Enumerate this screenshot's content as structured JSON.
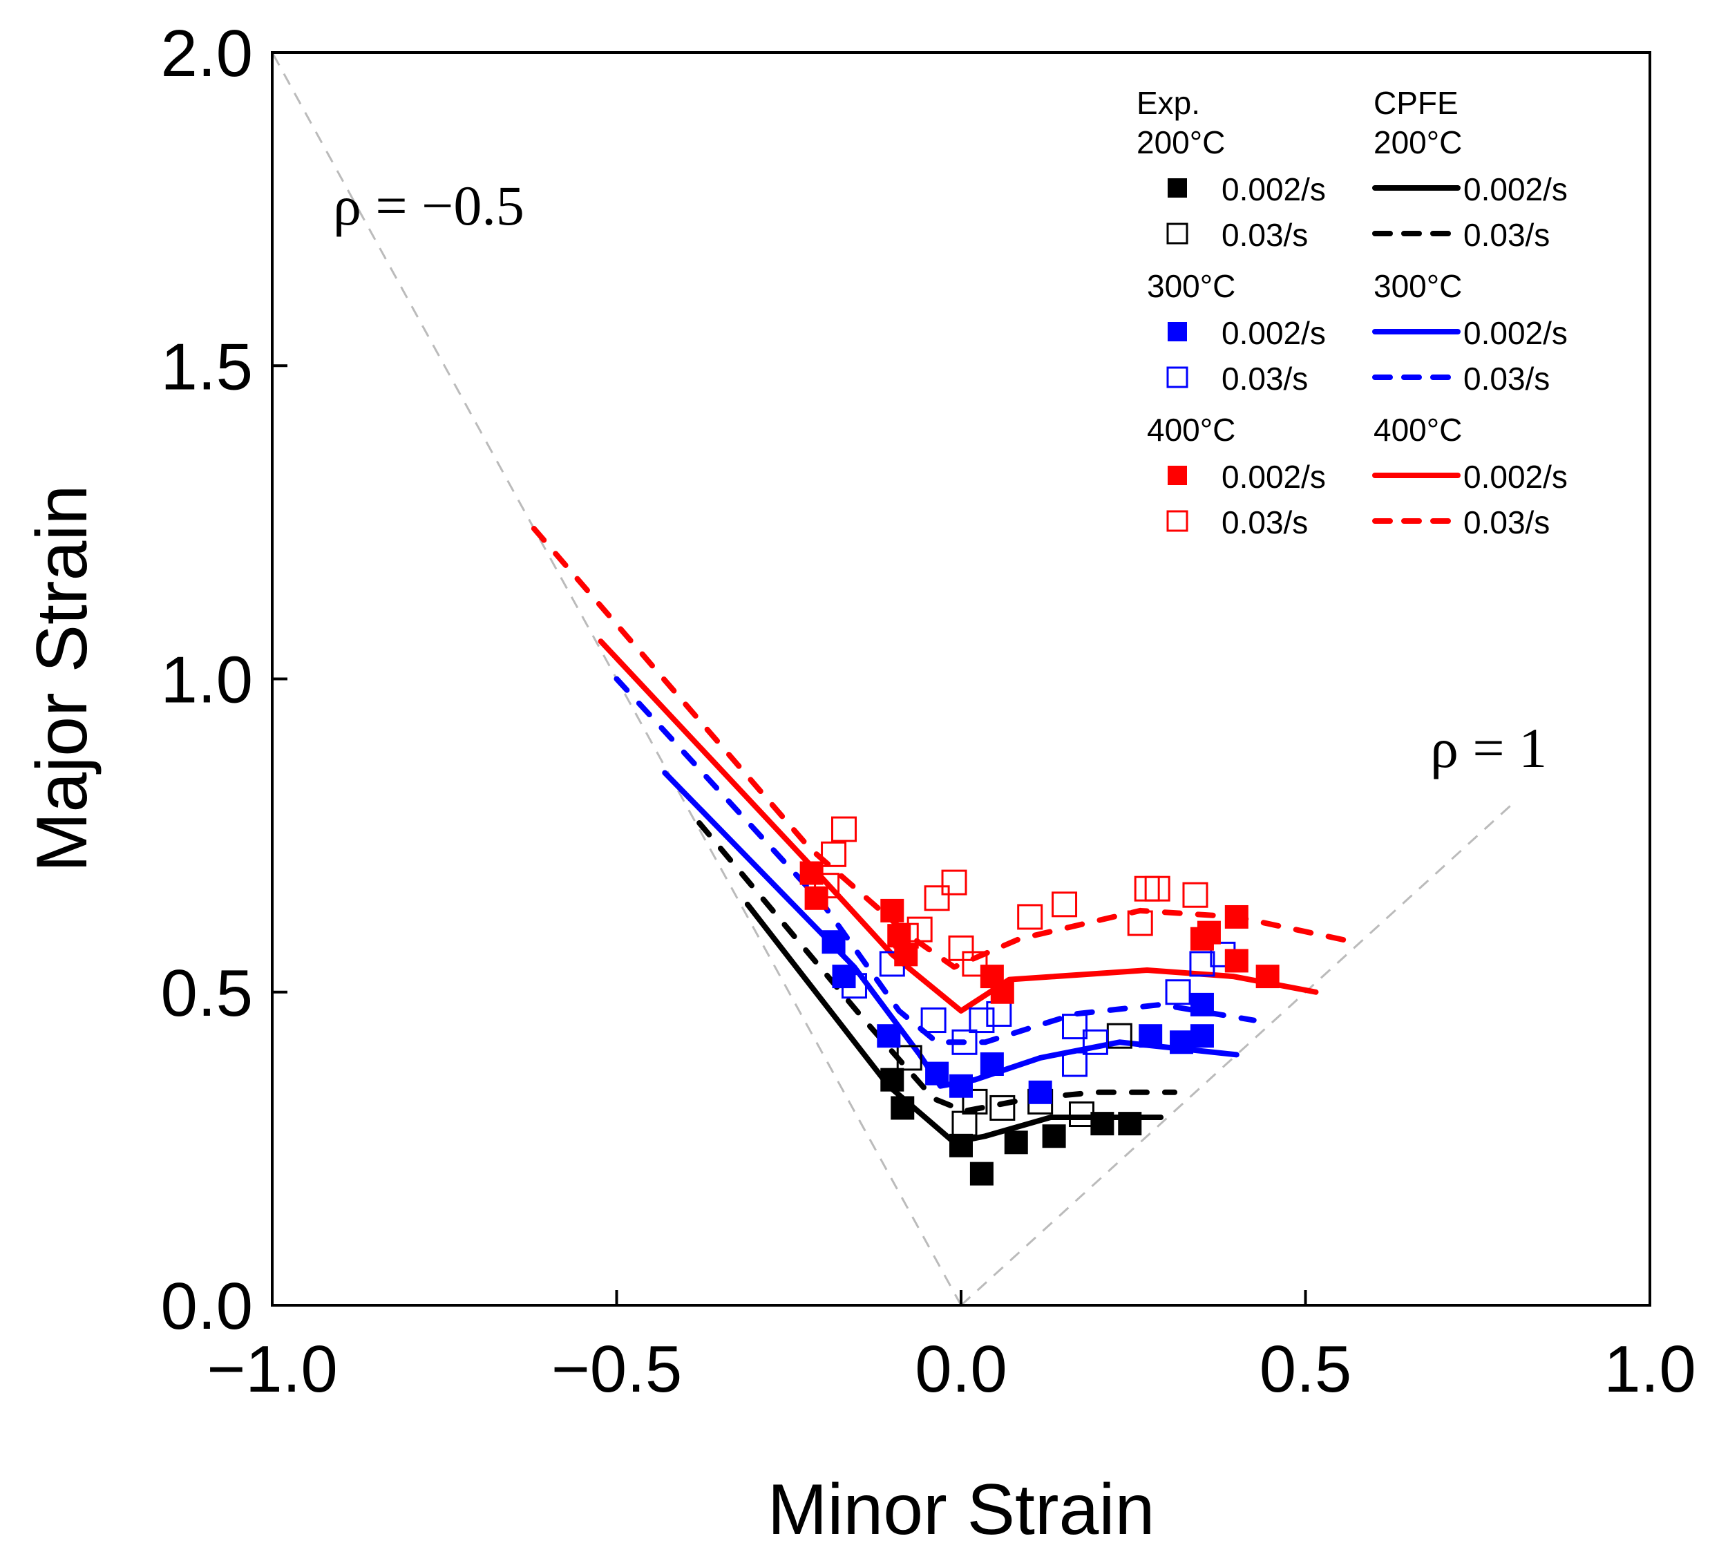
{
  "chart_data": {
    "type": "scatter",
    "xlabel": "Minor Strain",
    "ylabel": "Major Strain",
    "xlim": [
      -1.0,
      1.0
    ],
    "ylim": [
      0.0,
      2.0
    ],
    "xticks": [
      "−1.0",
      "−0.5",
      "0.0",
      "0.5",
      "1.0"
    ],
    "xtick_values": [
      -1.0,
      -0.5,
      0.0,
      0.5,
      1.0
    ],
    "yticks": [
      "0.0",
      "0.5",
      "1.0",
      "1.5",
      "2.0"
    ],
    "ytick_values": [
      0.0,
      0.5,
      1.0,
      1.5,
      2.0
    ],
    "grid": false,
    "legend_placement": "top-right",
    "annotations": [
      {
        "text": "ρ = −0.5",
        "x": -0.82,
        "y": 1.74
      },
      {
        "text": "ρ = 1",
        "x": 0.68,
        "y": 0.88
      }
    ],
    "reference_lines": [
      {
        "label": "ρ = −0.5",
        "points": [
          [
            0,
            0
          ],
          [
            -1.0,
            2.0
          ]
        ],
        "color": "#bbbbbb"
      },
      {
        "label": "ρ = 1",
        "points": [
          [
            0,
            0
          ],
          [
            0.8,
            0.8
          ]
        ],
        "color": "#bbbbbb"
      }
    ],
    "legend": {
      "exp_header": "Exp.",
      "cpfe_header": "CPFE",
      "groups": [
        {
          "temp": "200°C",
          "color": "#000000"
        },
        {
          "temp": "300°C",
          "color": "#0000ff"
        },
        {
          "temp": "400°C",
          "color": "#ff0000"
        }
      ],
      "rates": [
        "0.002/s",
        "0.03/s"
      ]
    },
    "experimental": [
      {
        "temp": "200°C",
        "rate": "0.002/s",
        "color": "#000000",
        "filled": true,
        "points": [
          [
            -0.1,
            0.36
          ],
          [
            -0.085,
            0.315
          ],
          [
            0.0,
            0.255
          ],
          [
            0.03,
            0.21
          ],
          [
            0.08,
            0.26
          ],
          [
            0.135,
            0.27
          ],
          [
            0.205,
            0.29
          ],
          [
            0.245,
            0.29
          ]
        ]
      },
      {
        "temp": "200°C",
        "rate": "0.03/s",
        "color": "#000000",
        "filled": false,
        "points": [
          [
            -0.075,
            0.395
          ],
          [
            0.005,
            0.29
          ],
          [
            0.02,
            0.325
          ],
          [
            0.06,
            0.315
          ],
          [
            0.115,
            0.325
          ],
          [
            0.175,
            0.305
          ],
          [
            0.23,
            0.43
          ]
        ]
      },
      {
        "temp": "300°C",
        "rate": "0.002/s",
        "color": "#0000ff",
        "filled": true,
        "points": [
          [
            -0.185,
            0.58
          ],
          [
            -0.17,
            0.525
          ],
          [
            -0.105,
            0.43
          ],
          [
            -0.035,
            0.37
          ],
          [
            0.0,
            0.35
          ],
          [
            0.045,
            0.385
          ],
          [
            0.115,
            0.34
          ],
          [
            0.275,
            0.43
          ],
          [
            0.32,
            0.42
          ],
          [
            0.35,
            0.43
          ],
          [
            0.35,
            0.48
          ]
        ]
      },
      {
        "temp": "300°C",
        "rate": "0.03/s",
        "color": "#0000ff",
        "filled": false,
        "points": [
          [
            -0.155,
            0.51
          ],
          [
            -0.1,
            0.545
          ],
          [
            -0.04,
            0.455
          ],
          [
            0.005,
            0.42
          ],
          [
            0.03,
            0.455
          ],
          [
            0.055,
            0.465
          ],
          [
            0.165,
            0.445
          ],
          [
            0.195,
            0.42
          ],
          [
            0.165,
            0.385
          ],
          [
            0.315,
            0.5
          ],
          [
            0.35,
            0.545
          ],
          [
            0.38,
            0.56
          ]
        ]
      },
      {
        "temp": "400°C",
        "rate": "0.002/s",
        "color": "#ff0000",
        "filled": true,
        "points": [
          [
            -0.217,
            0.69
          ],
          [
            -0.21,
            0.65
          ],
          [
            -0.1,
            0.63
          ],
          [
            -0.09,
            0.59
          ],
          [
            -0.08,
            0.56
          ],
          [
            0.045,
            0.525
          ],
          [
            0.06,
            0.5
          ],
          [
            0.35,
            0.585
          ],
          [
            0.36,
            0.595
          ],
          [
            0.4,
            0.62
          ],
          [
            0.4,
            0.55
          ],
          [
            0.445,
            0.525
          ]
        ]
      },
      {
        "temp": "400°C",
        "rate": "0.03/s",
        "color": "#ff0000",
        "filled": false,
        "points": [
          [
            -0.17,
            0.76
          ],
          [
            -0.185,
            0.72
          ],
          [
            -0.195,
            0.67
          ],
          [
            -0.08,
            0.59
          ],
          [
            -0.01,
            0.675
          ],
          [
            -0.035,
            0.65
          ],
          [
            -0.06,
            0.6
          ],
          [
            0.0,
            0.57
          ],
          [
            0.02,
            0.545
          ],
          [
            0.1,
            0.62
          ],
          [
            0.15,
            0.64
          ],
          [
            0.27,
            0.665
          ],
          [
            0.285,
            0.665
          ],
          [
            0.26,
            0.61
          ],
          [
            0.34,
            0.655
          ]
        ]
      }
    ],
    "cpfe": [
      {
        "temp": "200°C",
        "rate": "0.002/s",
        "color": "#000000",
        "dashed": false,
        "points": [
          [
            -0.31,
            0.64
          ],
          [
            -0.105,
            0.35
          ],
          [
            -0.01,
            0.26
          ],
          [
            0.035,
            0.27
          ],
          [
            0.13,
            0.3
          ],
          [
            0.29,
            0.3
          ]
        ]
      },
      {
        "temp": "200°C",
        "rate": "0.03/s",
        "color": "#000000",
        "dashed": true,
        "points": [
          [
            -0.38,
            0.77
          ],
          [
            -0.14,
            0.455
          ],
          [
            -0.04,
            0.33
          ],
          [
            0.005,
            0.31
          ],
          [
            0.1,
            0.33
          ],
          [
            0.195,
            0.34
          ],
          [
            0.31,
            0.34
          ]
        ]
      },
      {
        "temp": "300°C",
        "rate": "0.002/s",
        "color": "#0000ff",
        "dashed": false,
        "points": [
          [
            -0.43,
            0.85
          ],
          [
            -0.155,
            0.54
          ],
          [
            -0.06,
            0.4
          ],
          [
            -0.03,
            0.35
          ],
          [
            0.02,
            0.36
          ],
          [
            0.115,
            0.395
          ],
          [
            0.23,
            0.42
          ],
          [
            0.4,
            0.4
          ]
        ]
      },
      {
        "temp": "300°C",
        "rate": "0.03/s",
        "color": "#0000ff",
        "dashed": true,
        "points": [
          [
            -0.5,
            1.0
          ],
          [
            -0.2,
            0.64
          ],
          [
            -0.09,
            0.47
          ],
          [
            -0.035,
            0.42
          ],
          [
            0.035,
            0.42
          ],
          [
            0.165,
            0.465
          ],
          [
            0.29,
            0.48
          ],
          [
            0.425,
            0.455
          ]
        ]
      },
      {
        "temp": "400°C",
        "rate": "0.002/s",
        "color": "#ff0000",
        "dashed": false,
        "points": [
          [
            -0.523,
            1.06
          ],
          [
            -0.225,
            0.71
          ],
          [
            -0.1,
            0.56
          ],
          [
            0.0,
            0.47
          ],
          [
            0.07,
            0.52
          ],
          [
            0.27,
            0.535
          ],
          [
            0.395,
            0.525
          ],
          [
            0.515,
            0.5
          ]
        ]
      },
      {
        "temp": "400°C",
        "rate": "0.03/s",
        "color": "#ff0000",
        "dashed": true,
        "points": [
          [
            -0.62,
            1.24
          ],
          [
            -0.22,
            0.73
          ],
          [
            -0.075,
            0.59
          ],
          [
            -0.01,
            0.54
          ],
          [
            0.085,
            0.585
          ],
          [
            0.26,
            0.63
          ],
          [
            0.4,
            0.62
          ],
          [
            0.57,
            0.58
          ]
        ]
      }
    ]
  }
}
